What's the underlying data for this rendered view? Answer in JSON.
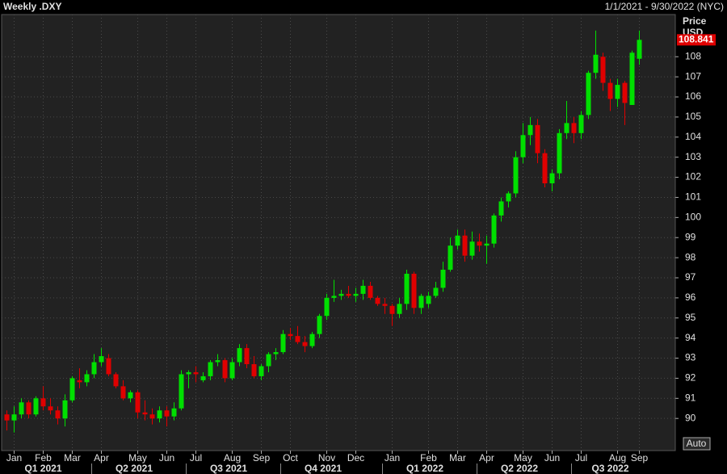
{
  "chart_data": {
    "type": "candlestick",
    "title": "Weekly .DXY",
    "subtitle": "1/1/2021 - 9/30/2022 (NYC)",
    "y_label": "Price",
    "currency": "USD",
    "last_price": 108.841,
    "button": "Auto",
    "up_color": "#00e000",
    "down_color": "#e00000",
    "grid": true,
    "categories": [
      null,
      "Jan",
      null,
      null,
      null,
      "Feb",
      null,
      null,
      null,
      "Mar",
      null,
      null,
      null,
      "Apr",
      null,
      null,
      null,
      null,
      "May",
      null,
      null,
      null,
      "Jun",
      null,
      null,
      null,
      "Jul",
      null,
      null,
      null,
      null,
      "Aug",
      null,
      null,
      null,
      "Sep",
      null,
      null,
      null,
      "Oct",
      null,
      null,
      null,
      null,
      "Nov",
      null,
      null,
      null,
      "Dec",
      null,
      null,
      null,
      null,
      "Jan",
      null,
      null,
      null,
      null,
      "Feb",
      null,
      null,
      null,
      "Mar",
      null,
      null,
      null,
      "Apr",
      null,
      null,
      null,
      null,
      "May",
      null,
      null,
      null,
      "Jun",
      null,
      null,
      null,
      "Jul",
      null,
      null,
      null,
      null,
      "Aug",
      null,
      null,
      "Sep"
    ],
    "quarters": [
      "Q1 2021",
      "Q2 2021",
      "Q3 2021",
      "Q4 2021",
      "Q1 2022",
      "Q2 2022",
      "Q3 2022"
    ],
    "open": [
      90.2,
      89.9,
      90.2,
      90.8,
      90.2,
      91.0,
      90.6,
      90.4,
      90.0,
      90.9,
      91.9,
      91.8,
      92.2,
      92.8,
      93.0,
      92.2,
      91.6,
      91.0,
      91.3,
      90.3,
      90.2,
      90.0,
      90.4,
      90.1,
      90.5,
      92.2,
      92.3,
      91.9,
      92.1,
      92.8,
      92.9,
      92.0,
      92.8,
      93.5,
      92.7,
      92.1,
      92.6,
      93.2,
      93.3,
      94.2,
      94.1,
      93.8,
      93.6,
      94.2,
      95.1,
      96.0,
      96.1,
      96.2,
      96.1,
      96.2,
      96.6,
      96.0,
      95.7,
      95.6,
      95.2,
      95.7,
      97.2,
      95.5,
      95.7,
      96.1,
      96.5,
      97.4,
      98.6,
      99.1,
      98.1,
      98.8,
      98.6,
      98.7,
      100.1,
      100.8,
      101.2,
      103.0,
      104.1,
      104.6,
      103.2,
      101.7,
      102.2,
      104.2,
      104.7,
      104.2,
      105.1,
      107.2,
      108.0,
      106.7,
      105.9,
      106.7,
      105.6,
      107.9
    ],
    "high": [
      90.4,
      90.6,
      91.0,
      90.9,
      91.1,
      91.6,
      91.0,
      90.6,
      91.2,
      92.1,
      92.5,
      92.4,
      93.2,
      93.5,
      93.2,
      92.3,
      91.9,
      91.4,
      91.4,
      90.9,
      90.5,
      90.6,
      90.6,
      90.8,
      92.4,
      92.4,
      92.6,
      92.3,
      92.9,
      93.2,
      93.0,
      93.0,
      93.7,
      93.7,
      93.1,
      92.7,
      93.3,
      93.5,
      94.4,
      94.5,
      94.6,
      94.1,
      94.3,
      95.2,
      96.2,
      96.9,
      96.4,
      96.6,
      96.5,
      96.9,
      96.8,
      96.1,
      96.0,
      95.7,
      96.0,
      97.4,
      97.3,
      96.2,
      96.3,
      96.8,
      97.8,
      99.0,
      99.4,
      99.4,
      99.3,
      99.2,
      99.1,
      100.2,
      101.0,
      101.3,
      103.3,
      104.7,
      105.0,
      104.9,
      103.4,
      102.4,
      104.4,
      105.8,
      105.0,
      105.3,
      107.3,
      109.3,
      108.2,
      106.9,
      106.9,
      106.8,
      108.3,
      109.3
    ],
    "low": [
      89.4,
      89.3,
      90.0,
      90.0,
      90.1,
      90.4,
      90.2,
      89.7,
      89.6,
      90.8,
      91.5,
      91.6,
      92.0,
      92.6,
      92.1,
      91.5,
      90.9,
      90.8,
      90.0,
      89.9,
      89.7,
      89.8,
      89.6,
      89.9,
      90.4,
      91.5,
      91.8,
      91.8,
      91.9,
      92.6,
      91.8,
      91.9,
      92.6,
      92.5,
      92.0,
      91.9,
      92.3,
      92.9,
      93.2,
      93.9,
      93.7,
      93.3,
      93.5,
      94.0,
      94.9,
      95.8,
      95.9,
      96.0,
      95.8,
      95.9,
      95.9,
      95.6,
      95.2,
      94.6,
      95.0,
      95.4,
      95.2,
      95.2,
      95.5,
      96.0,
      96.3,
      97.3,
      98.4,
      97.8,
      97.9,
      98.3,
      97.7,
      98.5,
      99.8,
      100.5,
      101.0,
      102.7,
      103.6,
      102.7,
      101.5,
      101.3,
      101.9,
      103.9,
      103.7,
      103.9,
      104.9,
      106.9,
      106.3,
      105.3,
      105.5,
      104.6,
      105.6,
      107.6
    ],
    "close": [
      89.9,
      90.2,
      90.8,
      90.2,
      91.0,
      90.6,
      90.4,
      90.0,
      90.9,
      92.0,
      91.8,
      92.2,
      92.8,
      93.1,
      92.2,
      91.6,
      91.0,
      91.3,
      90.3,
      90.2,
      90.0,
      90.4,
      90.1,
      90.5,
      92.2,
      92.3,
      92.2,
      92.1,
      92.8,
      92.9,
      92.0,
      92.8,
      93.5,
      92.7,
      92.1,
      92.6,
      93.2,
      93.3,
      94.2,
      94.1,
      93.8,
      93.6,
      94.2,
      95.1,
      96.0,
      96.1,
      96.2,
      96.1,
      96.2,
      96.6,
      96.0,
      95.7,
      95.6,
      95.2,
      95.7,
      97.2,
      95.5,
      96.1,
      96.1,
      96.5,
      97.4,
      98.6,
      99.1,
      98.1,
      98.8,
      98.6,
      98.7,
      100.1,
      100.8,
      101.2,
      103.0,
      104.1,
      104.6,
      103.2,
      101.7,
      102.2,
      104.2,
      104.7,
      104.2,
      105.1,
      107.2,
      108.1,
      106.7,
      105.9,
      106.6,
      105.7,
      108.2,
      108.841
    ],
    "ylim": [
      88.4,
      110.1
    ],
    "yticks": [
      90,
      91,
      92,
      93,
      94,
      95,
      96,
      97,
      98,
      99,
      100,
      101,
      102,
      103,
      104,
      105,
      106,
      107,
      108
    ]
  }
}
